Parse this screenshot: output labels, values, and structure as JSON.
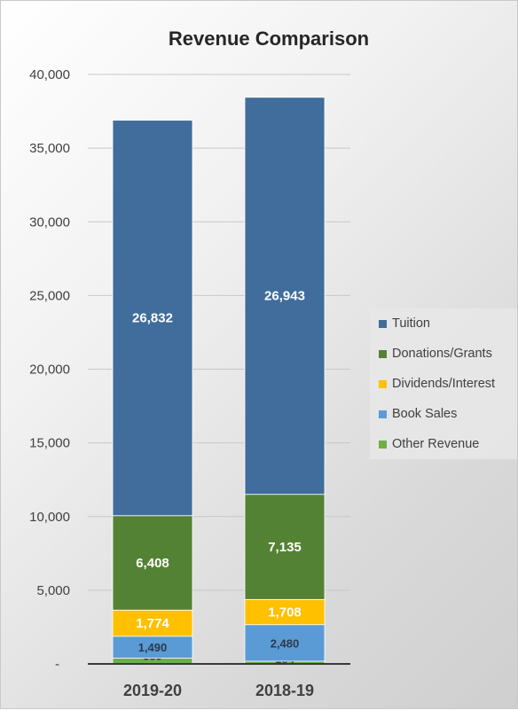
{
  "chart_data": {
    "type": "bar",
    "stacked": true,
    "title": "Revenue Comparison",
    "categories": [
      "2019-20",
      "2018-19"
    ],
    "ylim": [
      0,
      40000
    ],
    "yticks": [
      "-",
      "5,000",
      "10,000",
      "15,000",
      "20,000",
      "25,000",
      "30,000",
      "35,000",
      "40,000"
    ],
    "grid": true,
    "legend_position": "right",
    "series": [
      {
        "name": "Other Revenue",
        "color": "#70ad47",
        "values": [
          389,
          184
        ],
        "labels": [
          "389",
          "184"
        ]
      },
      {
        "name": "Book Sales",
        "color": "#5b9bd5",
        "values": [
          1490,
          2480
        ],
        "labels": [
          "1,490",
          "2,480"
        ]
      },
      {
        "name": "Dividends/Interest",
        "color": "#ffc000",
        "values": [
          1774,
          1708
        ],
        "labels": [
          "1,774",
          "1,708"
        ]
      },
      {
        "name": "Donations/Grants",
        "color": "#548235",
        "values": [
          6408,
          7135
        ],
        "labels": [
          "6,408",
          "7,135"
        ]
      },
      {
        "name": "Tuition",
        "color": "#416d9c",
        "values": [
          26832,
          26943
        ],
        "labels": [
          "26,832",
          "26,943"
        ]
      }
    ],
    "legend_order": [
      "Tuition",
      "Donations/Grants",
      "Dividends/Interest",
      "Book Sales",
      "Other Revenue"
    ]
  }
}
